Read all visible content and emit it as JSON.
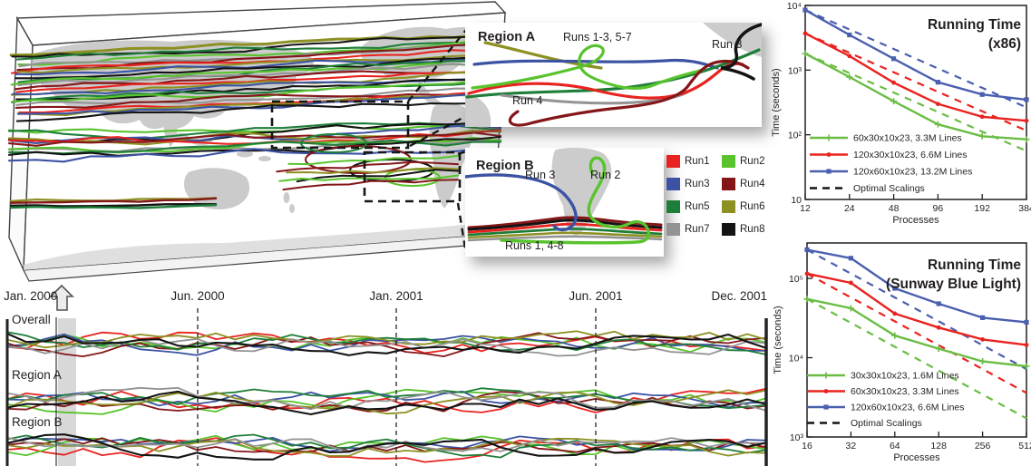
{
  "insets": {
    "region_a": {
      "title": "Region A",
      "runs_label": "Runs 1-3, 5-7",
      "run8_label": "Run 8",
      "run4_label": "Run 4"
    },
    "region_b": {
      "title": "Region B",
      "run3_label": "Run 3",
      "run2_label": "Run 2",
      "runs_label": "Runs 1, 4-8"
    }
  },
  "legend": {
    "items": [
      {
        "label": "Run1",
        "color": "#e8231f"
      },
      {
        "label": "Run2",
        "color": "#58c32c"
      },
      {
        "label": "Run3",
        "color": "#3c53a3"
      },
      {
        "label": "Run4",
        "color": "#841619"
      },
      {
        "label": "Run5",
        "color": "#1e7e39"
      },
      {
        "label": "Run6",
        "color": "#8d9023"
      },
      {
        "label": "Run7",
        "color": "#939393"
      },
      {
        "label": "Run8",
        "color": "#141414"
      }
    ]
  },
  "timeline": {
    "dates": [
      "Jan. 2000",
      "Jun. 2000",
      "Jan. 2001",
      "Jun. 2001",
      "Dec. 2001"
    ],
    "rows": [
      "Overall",
      "Region A",
      "Region B"
    ]
  },
  "chart_data": [
    {
      "type": "line",
      "title": "Running Time",
      "subtitle": "(x86)",
      "xlabel": "Processes",
      "ylabel": "Time (seconds)",
      "x_scale": "log2",
      "y_scale": "log10",
      "grid": false,
      "legend_position": "bottom-left",
      "x": [
        12,
        24,
        48,
        96,
        192,
        384
      ],
      "ylim": [
        10,
        10000
      ],
      "y_ticks": [
        {
          "value": 10000,
          "label": "10⁴"
        },
        {
          "value": 1000,
          "label": "10³"
        },
        {
          "value": 100,
          "label": "10²"
        },
        {
          "value": 10,
          "label": "10"
        }
      ],
      "series": [
        {
          "name": "60x30x10x23, 3.3M Lines",
          "color": "#6abd45",
          "marker": "cross",
          "values": [
            1800,
            780,
            330,
            145,
            95,
            85
          ]
        },
        {
          "name": "120x30x10x23, 6.6M Lines",
          "color": "#e8231f",
          "marker": "dot",
          "values": [
            3700,
            1650,
            640,
            300,
            190,
            165
          ]
        },
        {
          "name": "120x60x10x23, 13.2M Lines",
          "color": "#4a5fae",
          "marker": "square",
          "values": [
            8500,
            3500,
            1500,
            650,
            420,
            350
          ]
        }
      ],
      "optimal_scalings": {
        "label": "Optimal Scalings",
        "style": "dashed",
        "values": [
          [
            1800,
            900,
            450,
            225,
            112,
            56
          ],
          [
            3700,
            1850,
            925,
            462,
            231,
            116
          ],
          [
            8500,
            4250,
            2125,
            1062,
            531,
            266
          ]
        ]
      }
    },
    {
      "type": "line",
      "title": "Running Time",
      "subtitle": "(Sunway Blue Light)",
      "xlabel": "Processes",
      "ylabel": "Time (seconds)",
      "x_scale": "log2",
      "y_scale": "log10",
      "grid": false,
      "legend_position": "bottom-left",
      "x": [
        16,
        32,
        64,
        128,
        256,
        512
      ],
      "ylim": [
        1000,
        280000
      ],
      "y_ticks": [
        {
          "value": 100000,
          "label": "10⁵"
        },
        {
          "value": 10000,
          "label": "10⁴"
        },
        {
          "value": 1000,
          "label": "10³"
        }
      ],
      "series": [
        {
          "name": "30x30x10x23, 1.6M Lines",
          "color": "#6abd45",
          "marker": "cross",
          "values": [
            55000,
            42000,
            19000,
            13000,
            9000,
            7800
          ]
        },
        {
          "name": "60x30x10x23, 3.3M Lines",
          "color": "#e8231f",
          "marker": "dot",
          "values": [
            115000,
            88000,
            36000,
            24000,
            17000,
            14500
          ]
        },
        {
          "name": "120x60x10x23, 6.6M Lines",
          "color": "#4a5fae",
          "marker": "square",
          "values": [
            230000,
            180000,
            75000,
            48000,
            32000,
            28000
          ]
        }
      ],
      "optimal_scalings": {
        "label": "Optimal Scalings",
        "style": "dashed",
        "values": [
          [
            55000,
            27500,
            13750,
            6875,
            3438,
            1719
          ],
          [
            115000,
            57500,
            28750,
            14375,
            7188,
            3594
          ],
          [
            230000,
            115000,
            57500,
            28750,
            14375,
            7188
          ]
        ]
      }
    }
  ]
}
